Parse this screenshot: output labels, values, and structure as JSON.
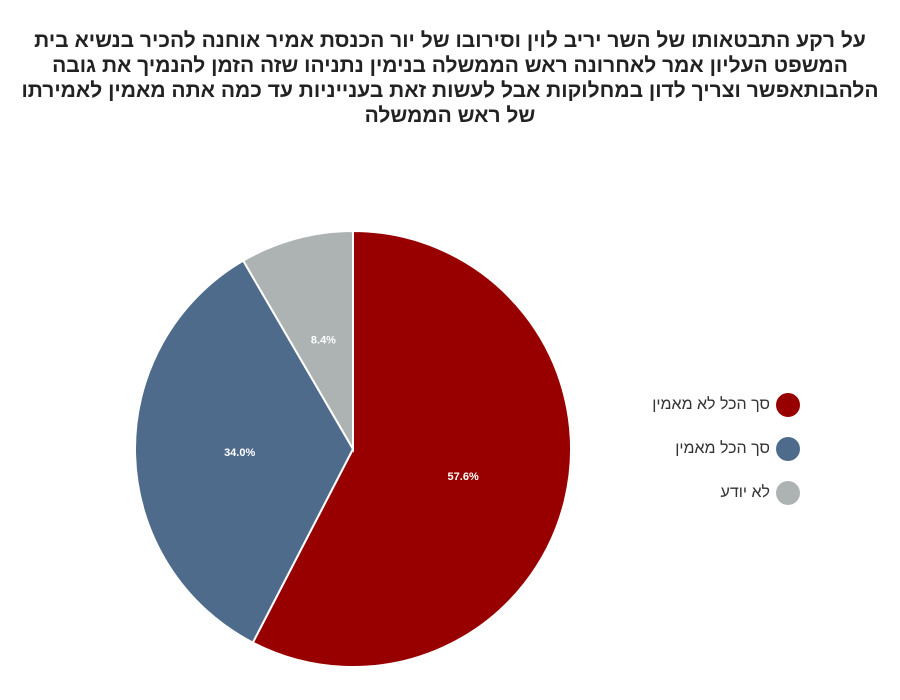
{
  "title": "על רקע התבטאותו של השר יריב לוין וסירובו של יור הכנסת אמיר אוחנה להכיר בנשיא בית המשפט העליון אמר לאחרונה ראש הממשלה בנימין נתניהו שזה הזמן להנמיך את גובה הלהבותאפשר וצריך לדון במחלוקות אבל לעשות זאת בענייניות עד כמה אתה מאמין לאמירתו של ראש הממשלה",
  "chart_data": {
    "type": "pie",
    "title": "על רקע התבטאותו של השר יריב לוין וסירובו של יור הכנסת אמיר אוחנה להכיר בנשיא בית המשפט העליון אמר לאחרונה ראש הממשלה בנימין נתניהו שזה הזמן להנמיך את גובה הלהבותאפשר וצריך לדון במחלוקות אבל לעשות זאת בענייניות עד כמה אתה מאמין לאמירתו של ראש הממשלה",
    "slices": [
      {
        "label": "סך הכל לא מאמין",
        "value": 57.6,
        "display": "57.6%",
        "color": "#980000"
      },
      {
        "label": "סך הכל מאמין",
        "value": 34.0,
        "display": "34.0%",
        "color": "#4e6b8c"
      },
      {
        "label": "לא יודע",
        "value": 8.4,
        "display": "8.4%",
        "color": "#adb3b3"
      }
    ],
    "start_angle": "12 o'clock",
    "direction": "clockwise",
    "legend_position": "right"
  }
}
